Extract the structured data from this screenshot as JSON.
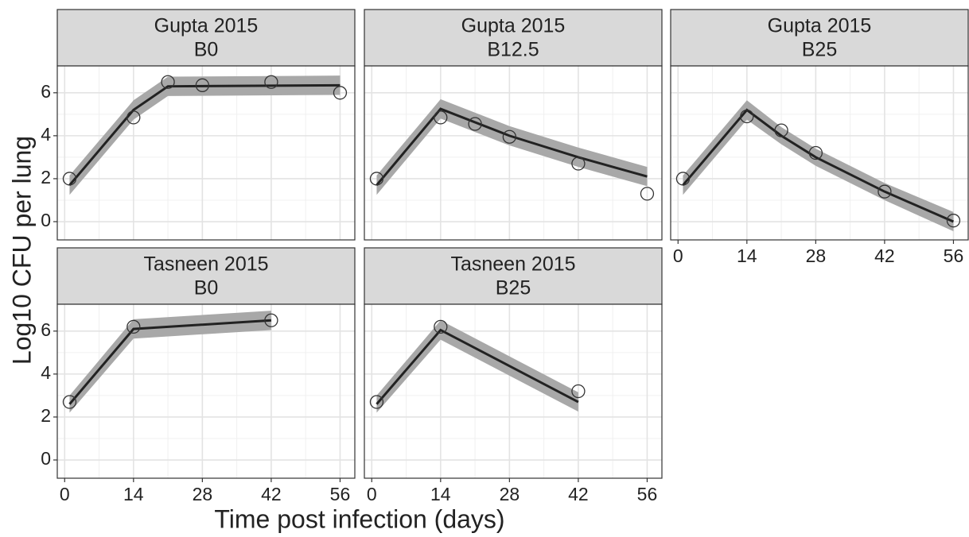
{
  "ylabel": "Log10 CFU per lung",
  "xlabel": "Time post infection (days)",
  "chart_data": [
    {
      "type": "line",
      "title": "Gupta 2015",
      "subtitle": "B0",
      "xlim": [
        -1.5,
        59
      ],
      "ylim": [
        -0.85,
        7.25
      ],
      "xticks": [
        0,
        14,
        28,
        42,
        56
      ],
      "yticks": [
        0,
        2,
        4,
        6
      ],
      "minor_xticks": [
        7,
        21,
        35,
        49
      ],
      "minor_yticks": [
        1,
        3,
        5
      ],
      "grid": true,
      "points": {
        "x": [
          1,
          14,
          21,
          28,
          42,
          56
        ],
        "y": [
          2.0,
          4.85,
          6.5,
          6.35,
          6.5,
          6.0
        ]
      },
      "line": {
        "x": [
          1,
          14,
          21,
          56
        ],
        "y": [
          1.7,
          5.2,
          6.3,
          6.35
        ],
        "lower": [
          1.25,
          4.75,
          5.85,
          5.9
        ],
        "upper": [
          2.15,
          5.65,
          6.75,
          6.8
        ]
      }
    },
    {
      "type": "line",
      "title": "Gupta 2015",
      "subtitle": "B12.5",
      "xlim": [
        -1.5,
        59
      ],
      "ylim": [
        -0.85,
        7.25
      ],
      "xticks": [
        0,
        14,
        28,
        42,
        56
      ],
      "yticks": [
        0,
        2,
        4,
        6
      ],
      "minor_xticks": [
        7,
        21,
        35,
        49
      ],
      "minor_yticks": [
        1,
        3,
        5
      ],
      "grid": true,
      "points": {
        "x": [
          1,
          14,
          21,
          28,
          42,
          56
        ],
        "y": [
          2.0,
          4.85,
          4.55,
          3.95,
          2.7,
          1.3
        ]
      },
      "line": {
        "x": [
          1,
          14,
          28,
          42,
          56
        ],
        "y": [
          1.7,
          5.25,
          4.0,
          3.0,
          2.1
        ],
        "lower": [
          1.25,
          4.8,
          3.55,
          2.55,
          1.65
        ],
        "upper": [
          2.15,
          5.7,
          4.45,
          3.45,
          2.55
        ]
      }
    },
    {
      "type": "line",
      "title": "Gupta 2015",
      "subtitle": "B25",
      "xlim": [
        -1.5,
        59
      ],
      "ylim": [
        -0.85,
        7.25
      ],
      "xticks": [
        0,
        14,
        28,
        42,
        56
      ],
      "yticks": [
        0,
        2,
        4,
        6
      ],
      "minor_xticks": [
        7,
        21,
        35,
        49
      ],
      "minor_yticks": [
        1,
        3,
        5
      ],
      "grid": true,
      "points": {
        "x": [
          1,
          14,
          21,
          28,
          42,
          56
        ],
        "y": [
          2.0,
          4.9,
          4.25,
          3.2,
          1.4,
          0.05
        ]
      },
      "line": {
        "x": [
          1,
          14,
          21,
          28,
          42,
          56
        ],
        "y": [
          1.7,
          5.2,
          4.0,
          3.0,
          1.4,
          0.0
        ],
        "lower": [
          1.25,
          4.75,
          3.6,
          2.6,
          1.0,
          -0.45
        ],
        "upper": [
          2.15,
          5.65,
          4.4,
          3.4,
          1.8,
          0.45
        ]
      }
    },
    {
      "type": "line",
      "title": "Tasneen 2015",
      "subtitle": "B0",
      "xlim": [
        -1.5,
        59
      ],
      "ylim": [
        -0.85,
        7.25
      ],
      "xticks": [
        0,
        14,
        28,
        42,
        56
      ],
      "yticks": [
        0,
        2,
        4,
        6
      ],
      "minor_xticks": [
        7,
        21,
        35,
        49
      ],
      "minor_yticks": [
        1,
        3,
        5
      ],
      "grid": true,
      "points": {
        "x": [
          1,
          14,
          42
        ],
        "y": [
          2.7,
          6.2,
          6.5
        ]
      },
      "line": {
        "x": [
          1,
          14,
          42
        ],
        "y": [
          2.6,
          6.1,
          6.5
        ],
        "lower": [
          2.2,
          5.65,
          6.05
        ],
        "upper": [
          3.0,
          6.55,
          6.95
        ]
      }
    },
    {
      "type": "line",
      "title": "Tasneen 2015",
      "subtitle": "B25",
      "xlim": [
        -1.5,
        59
      ],
      "ylim": [
        -0.85,
        7.25
      ],
      "xticks": [
        0,
        14,
        28,
        42,
        56
      ],
      "yticks": [
        0,
        2,
        4,
        6
      ],
      "minor_xticks": [
        7,
        21,
        35,
        49
      ],
      "minor_yticks": [
        1,
        3,
        5
      ],
      "grid": true,
      "points": {
        "x": [
          1,
          14,
          42
        ],
        "y": [
          2.7,
          6.2,
          3.2
        ]
      },
      "line": {
        "x": [
          1,
          14,
          42
        ],
        "y": [
          2.6,
          6.05,
          2.7
        ],
        "lower": [
          2.2,
          5.6,
          2.25
        ],
        "upper": [
          3.0,
          6.5,
          3.15
        ]
      }
    }
  ]
}
